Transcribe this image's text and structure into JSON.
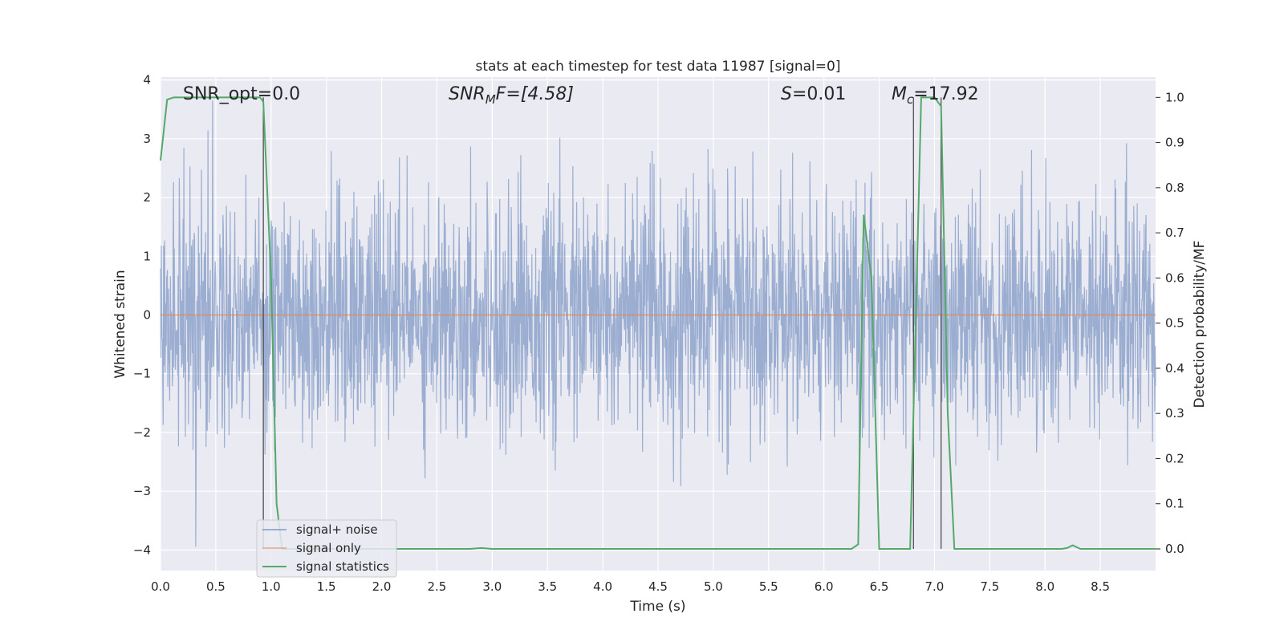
{
  "chart_data": {
    "type": "line",
    "title": "stats at each timestep for test data 11987 [signal=0]",
    "xlabel": "Time (s)",
    "ylabel": "Whitened strain",
    "y2label": "Detection probability/MF",
    "xlim": [
      0,
      9.0
    ],
    "ylim": [
      -4.35,
      4.05
    ],
    "y2lim": [
      -0.048,
      1.045
    ],
    "xticks": [
      0.0,
      0.5,
      1.0,
      1.5,
      2.0,
      2.5,
      3.0,
      3.5,
      4.0,
      4.5,
      5.0,
      5.5,
      6.0,
      6.5,
      7.0,
      7.5,
      8.0,
      8.5
    ],
    "xtick_labels": [
      "0.0",
      "0.5",
      "1.0",
      "1.5",
      "2.0",
      "2.5",
      "3.0",
      "3.5",
      "4.0",
      "4.5",
      "5.0",
      "5.5",
      "6.0",
      "6.5",
      "7.0",
      "7.5",
      "8.0",
      "8.5"
    ],
    "yticks": [
      -4,
      -3,
      -2,
      -1,
      0,
      1,
      2,
      3,
      4
    ],
    "ytick_labels": [
      "−4",
      "−3",
      "−2",
      "−1",
      "0",
      "1",
      "2",
      "3",
      "4"
    ],
    "y2ticks": [
      0.0,
      0.1,
      0.2,
      0.3,
      0.4,
      0.5,
      0.6,
      0.7,
      0.8,
      0.9,
      1.0
    ],
    "y2tick_labels": [
      "0.0",
      "0.1",
      "0.2",
      "0.3",
      "0.4",
      "0.5",
      "0.6",
      "0.7",
      "0.8",
      "0.9",
      "1.0"
    ],
    "grid": true,
    "legend_position": "lower-left",
    "annotations": {
      "snr_opt": "SNR_opt=0.0",
      "snr_mf_main": "SNR",
      "snr_mf_sub": "M",
      "snr_mf_rest": "F=[4.58]",
      "s_main": "S",
      "s_rest": "=0.01",
      "mc_main": "M",
      "mc_sub": "c",
      "mc_rest": "=17.92"
    },
    "vertical_markers": [
      0.93,
      6.81,
      7.06
    ],
    "series": [
      {
        "name": "signal+ noise",
        "color": "#4c72b0",
        "noise_std": 1.0,
        "noise_range": [
          -4.0,
          3.65
        ]
      },
      {
        "name": "signal only",
        "color": "#dd8452",
        "x": [
          0.0,
          9.0
        ],
        "y": [
          0.0,
          0.0
        ]
      },
      {
        "name": "signal statistics",
        "color": "#55a868",
        "x": [
          0.0,
          0.06,
          0.12,
          0.5,
          0.9,
          0.93,
          1.0,
          1.05,
          1.1,
          1.5,
          2.0,
          2.5,
          2.8,
          2.9,
          3.0,
          3.5,
          4.0,
          4.5,
          5.0,
          5.5,
          6.0,
          6.25,
          6.31,
          6.36,
          6.43,
          6.5,
          6.6,
          6.78,
          6.83,
          6.88,
          7.0,
          7.06,
          7.12,
          7.18,
          7.5,
          8.0,
          8.15,
          8.2,
          8.25,
          8.32,
          8.5,
          9.0
        ],
        "y": [
          0.86,
          0.995,
          1.0,
          1.0,
          1.0,
          0.99,
          0.6,
          0.1,
          0.0,
          0.0,
          0.0,
          0.0,
          0.0,
          0.002,
          0.0,
          0.0,
          0.0,
          0.0,
          0.0,
          0.0,
          0.0,
          0.0,
          0.01,
          0.74,
          0.6,
          0.0,
          0.0,
          0.0,
          0.5,
          1.0,
          1.0,
          0.98,
          0.3,
          0.0,
          0.0,
          0.0,
          0.0,
          0.002,
          0.008,
          0.0,
          0.0,
          0.0
        ]
      }
    ]
  }
}
